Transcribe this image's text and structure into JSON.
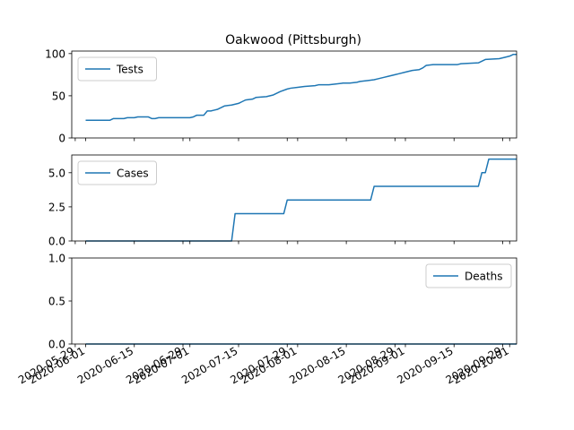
{
  "chart_data": {
    "type": "line",
    "title": "Oakwood (Pittsburgh)",
    "color": "#1f77b4",
    "x_ticks": [
      "2020-05-29",
      "2020-06-01",
      "2020-06-15",
      "2020-06-29",
      "2020-07-01",
      "2020-07-15",
      "2020-07-29",
      "2020-08-01",
      "2020-08-15",
      "2020-08-29",
      "2020-09-01",
      "2020-09-15",
      "2020-09-29",
      "2020-10-01"
    ],
    "xlim": [
      "2020-05-28",
      "2020-10-03"
    ],
    "panels": [
      {
        "series": {
          "name": "Tests",
          "legend_loc": "upper left",
          "ylim": [
            0,
            103
          ],
          "yticks": [
            0,
            50,
            100
          ],
          "ytick_labels": [
            "0",
            "50",
            "100"
          ],
          "points": [
            [
              "2020-06-01",
              21
            ],
            [
              "2020-06-08",
              21
            ],
            [
              "2020-06-09",
              23
            ],
            [
              "2020-06-12",
              23
            ],
            [
              "2020-06-13",
              24
            ],
            [
              "2020-06-15",
              24
            ],
            [
              "2020-06-16",
              25
            ],
            [
              "2020-06-19",
              25
            ],
            [
              "2020-06-20",
              23
            ],
            [
              "2020-06-21",
              23
            ],
            [
              "2020-06-22",
              24
            ],
            [
              "2020-06-26",
              24
            ],
            [
              "2020-07-01",
              24
            ],
            [
              "2020-07-02",
              25
            ],
            [
              "2020-07-03",
              27
            ],
            [
              "2020-07-05",
              27
            ],
            [
              "2020-07-06",
              32
            ],
            [
              "2020-07-07",
              32
            ],
            [
              "2020-07-08",
              33
            ],
            [
              "2020-07-09",
              34
            ],
            [
              "2020-07-10",
              36
            ],
            [
              "2020-07-11",
              38
            ],
            [
              "2020-07-13",
              39
            ],
            [
              "2020-07-15",
              41
            ],
            [
              "2020-07-16",
              43
            ],
            [
              "2020-07-17",
              45
            ],
            [
              "2020-07-19",
              46
            ],
            [
              "2020-07-20",
              48
            ],
            [
              "2020-07-23",
              49
            ],
            [
              "2020-07-25",
              51
            ],
            [
              "2020-07-27",
              55
            ],
            [
              "2020-07-29",
              58
            ],
            [
              "2020-07-30",
              59
            ],
            [
              "2020-08-01",
              60
            ],
            [
              "2020-08-03",
              61
            ],
            [
              "2020-08-06",
              62
            ],
            [
              "2020-08-07",
              63
            ],
            [
              "2020-08-10",
              63
            ],
            [
              "2020-08-12",
              64
            ],
            [
              "2020-08-14",
              65
            ],
            [
              "2020-08-16",
              65
            ],
            [
              "2020-08-18",
              66
            ],
            [
              "2020-08-19",
              67
            ],
            [
              "2020-08-21",
              68
            ],
            [
              "2020-08-23",
              69
            ],
            [
              "2020-08-24",
              70
            ],
            [
              "2020-08-26",
              72
            ],
            [
              "2020-08-27",
              73
            ],
            [
              "2020-08-29",
              75
            ],
            [
              "2020-08-30",
              76
            ],
            [
              "2020-09-01",
              78
            ],
            [
              "2020-09-03",
              80
            ],
            [
              "2020-09-05",
              81
            ],
            [
              "2020-09-06",
              83
            ],
            [
              "2020-09-07",
              86
            ],
            [
              "2020-09-09",
              87
            ],
            [
              "2020-09-16",
              87
            ],
            [
              "2020-09-17",
              88
            ],
            [
              "2020-09-22",
              89
            ],
            [
              "2020-09-23",
              91
            ],
            [
              "2020-09-24",
              93
            ],
            [
              "2020-09-28",
              94
            ],
            [
              "2020-09-30",
              96
            ],
            [
              "2020-10-01",
              97
            ],
            [
              "2020-10-02",
              99
            ],
            [
              "2020-10-03",
              99
            ]
          ]
        }
      },
      {
        "series": {
          "name": "Cases",
          "legend_loc": "upper left",
          "ylim": [
            0,
            6.3
          ],
          "yticks": [
            0,
            2.5,
            5.0
          ],
          "ytick_labels": [
            "0.0",
            "2.5",
            "5.0"
          ],
          "points": [
            [
              "2020-06-01",
              0
            ],
            [
              "2020-07-13",
              0
            ],
            [
              "2020-07-14",
              2
            ],
            [
              "2020-07-28",
              2
            ],
            [
              "2020-07-29",
              3
            ],
            [
              "2020-08-22",
              3
            ],
            [
              "2020-08-23",
              4
            ],
            [
              "2020-09-22",
              4
            ],
            [
              "2020-09-23",
              5
            ],
            [
              "2020-09-24",
              5
            ],
            [
              "2020-09-25",
              6
            ],
            [
              "2020-10-03",
              6
            ]
          ]
        }
      },
      {
        "series": {
          "name": "Deaths",
          "legend_loc": "upper right",
          "ylim": [
            0,
            1.0
          ],
          "yticks": [
            0,
            0.5,
            1.0
          ],
          "ytick_labels": [
            "0.0",
            "0.5",
            "1.0"
          ],
          "points": [
            [
              "2020-06-01",
              0
            ],
            [
              "2020-10-03",
              0
            ]
          ]
        }
      }
    ]
  }
}
